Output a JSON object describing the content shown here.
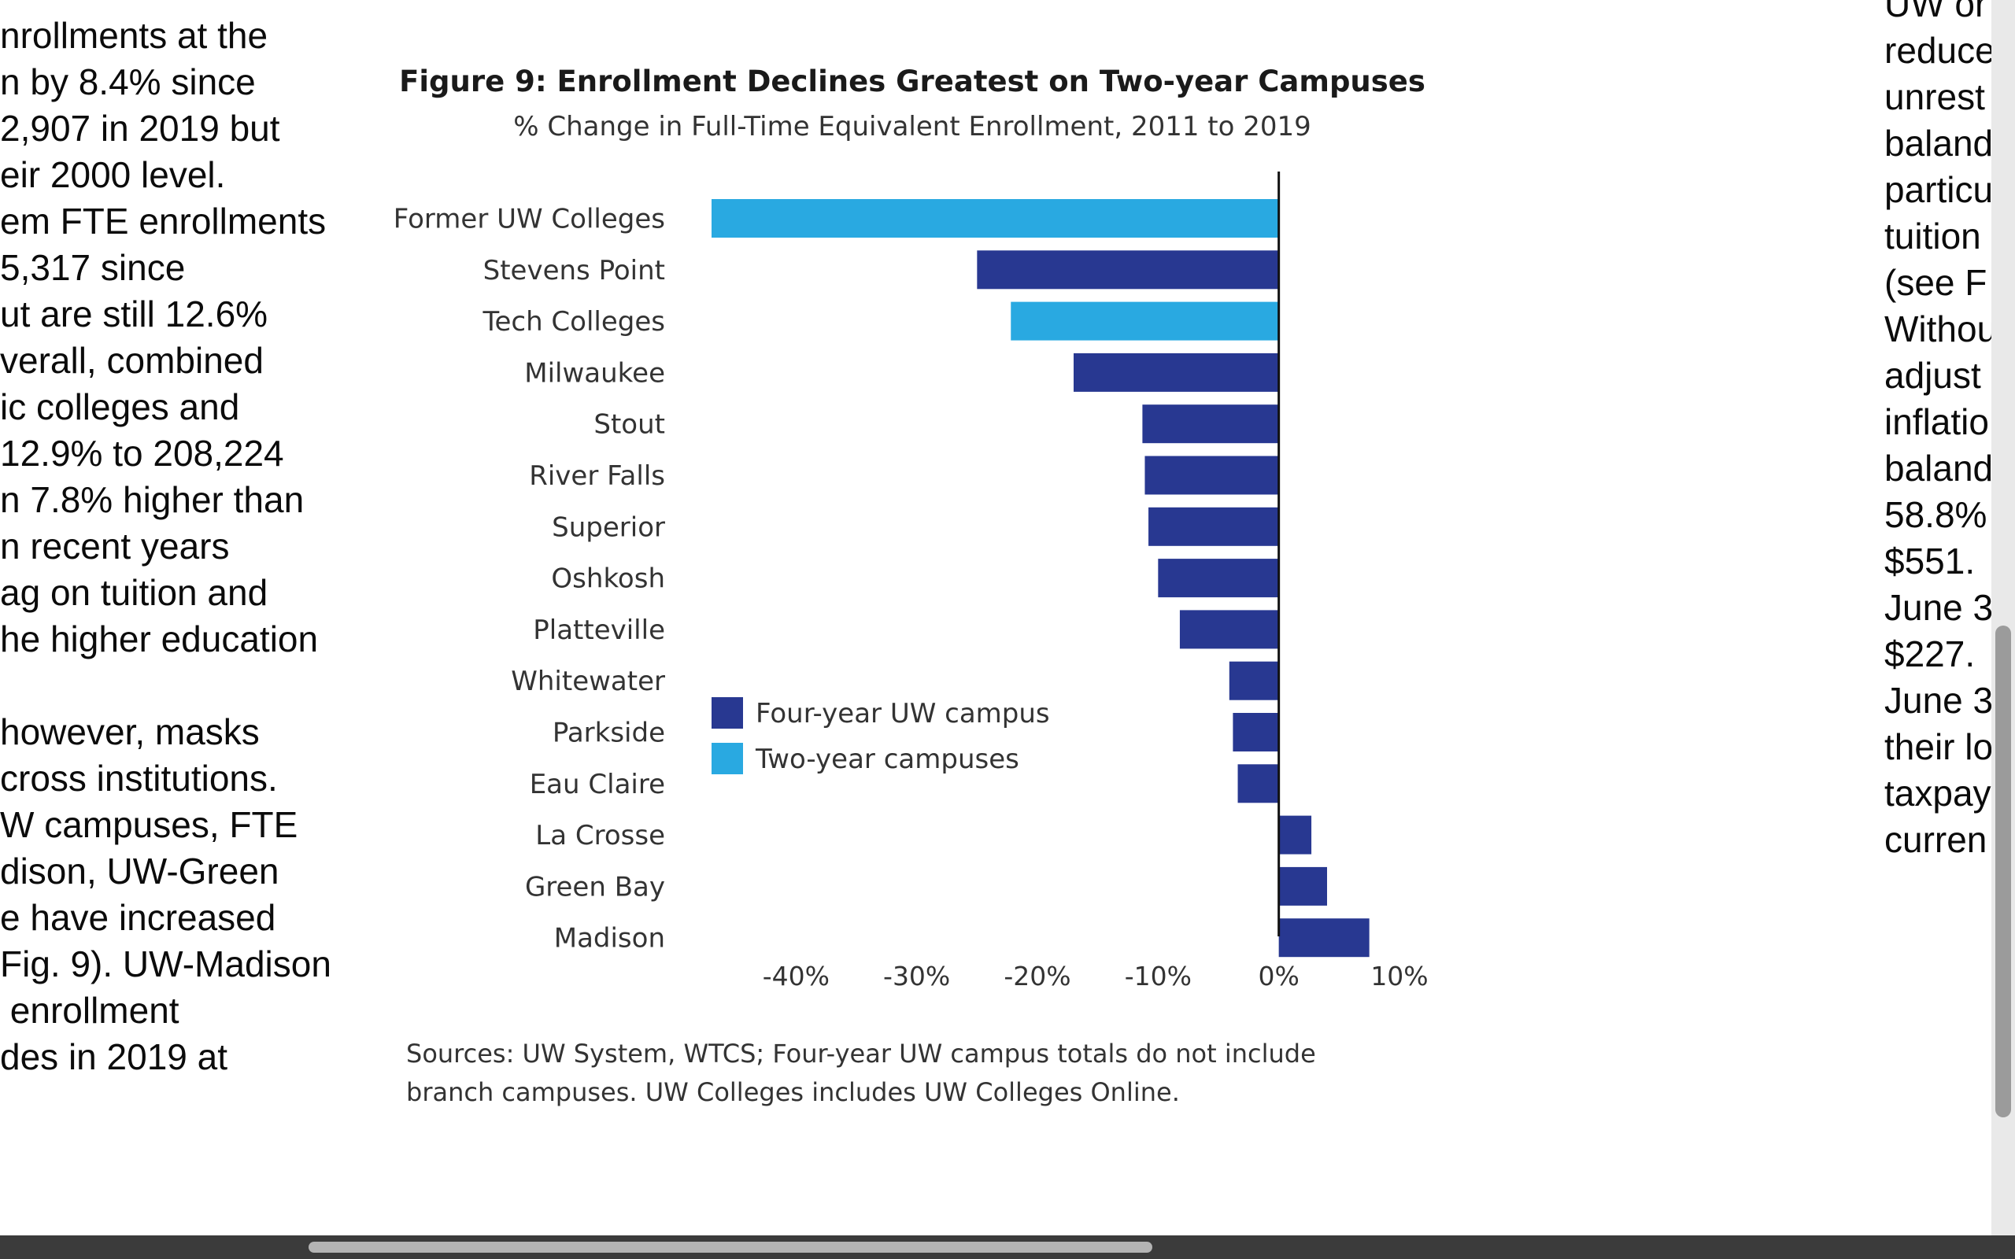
{
  "left_column": [
    "nrollments at the",
    "n by 8.4% since",
    "2,907 in 2019 but",
    "eir 2000 level.",
    "em FTE enrollments",
    "5,317 since",
    "ut are still 12.6%",
    "verall, combined",
    "ic colleges and",
    "12.9% to 208,224",
    "n 7.8% higher than",
    "n recent years",
    "ag on tuition and",
    "he higher education",
    "",
    "however, masks",
    "cross institutions.",
    "W campuses, FTE",
    "dison, UW-Green",
    "e have increased",
    "Fig. 9). UW-Madison",
    " enrollment",
    "des in 2019 at"
  ],
  "right_column": [
    "UW or",
    "reduce",
    "unrest",
    "baland",
    "particu",
    "tuition",
    "(see F",
    "Withou",
    "adjust",
    "inflatio",
    "baland",
    "58.8%",
    "$551.",
    "June 3",
    "$227.",
    "June 3",
    "their lo",
    "taxpay",
    "curren"
  ],
  "chart_data": {
    "type": "bar",
    "orientation": "horizontal",
    "title": "Figure 9: Enrollment Declines Greatest on Two-year Campuses",
    "subtitle": "% Change in Full-Time Equivalent Enrollment, 2011 to 2019",
    "categories": [
      "Former UW Colleges",
      "Stevens Point",
      "Tech Colleges",
      "Milwaukee",
      "Stout",
      "River Falls",
      "Superior",
      "Oshkosh",
      "Platteville",
      "Whitewater",
      "Parkside",
      "Eau Claire",
      "La Crosse",
      "Green Bay",
      "Madison"
    ],
    "values": [
      -47,
      -25,
      -22.2,
      -17,
      -11.3,
      -11.1,
      -10.8,
      -10,
      -8.2,
      -4.1,
      -3.8,
      -3.4,
      2.7,
      4,
      7.5
    ],
    "groups": [
      "two-year",
      "four-year",
      "two-year",
      "four-year",
      "four-year",
      "four-year",
      "four-year",
      "four-year",
      "four-year",
      "four-year",
      "four-year",
      "four-year",
      "four-year",
      "four-year",
      "four-year"
    ],
    "xlim": [
      -47,
      10
    ],
    "xticks": [
      -40,
      -30,
      -20,
      -10,
      0,
      10
    ],
    "xtick_labels": [
      "-40%",
      "-30%",
      "-20%",
      "-10%",
      "0%",
      "10%"
    ],
    "legend": [
      {
        "key": "four-year",
        "label": "Four-year UW campus",
        "color": "#283891"
      },
      {
        "key": "two-year",
        "label": "Two-year campuses",
        "color": "#29a9e1"
      }
    ],
    "legend_position": "center-left",
    "source_lines": [
      "Sources: UW System, WTCS; Four-year UW campus totals do not include",
      "branch campuses. UW Colleges includes UW Colleges Online."
    ]
  }
}
